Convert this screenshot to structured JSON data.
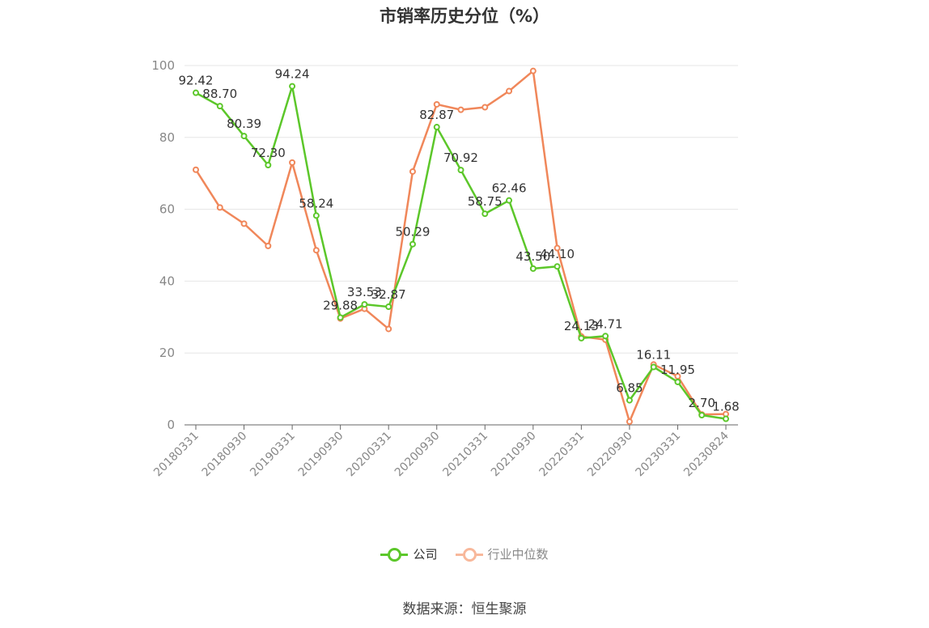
{
  "chart_data": {
    "type": "line",
    "title": "市销率历史分位（%）",
    "xlabel": "",
    "ylabel": "",
    "ylim": [
      0,
      100
    ],
    "yticks": [
      0,
      20,
      40,
      60,
      80,
      100
    ],
    "xticks": [
      "20180331",
      "20180930",
      "20190331",
      "20190930",
      "20200331",
      "20200930",
      "20210331",
      "20210930",
      "20220331",
      "20220930",
      "20230331",
      "20230824"
    ],
    "grid": true,
    "legend_position": "bottom",
    "series": [
      {
        "name": "公司",
        "color": "#5cc72a",
        "values": [
          92.42,
          88.7,
          80.39,
          72.3,
          94.24,
          58.24,
          29.88,
          33.53,
          32.87,
          50.29,
          82.87,
          70.92,
          58.75,
          62.46,
          43.5,
          44.1,
          24.13,
          24.71,
          6.85,
          16.11,
          11.95,
          2.7,
          1.68
        ],
        "labels": [
          "92.42",
          "88.70",
          "80.39",
          "72.30",
          "94.24",
          "58.24",
          "29.88",
          "33.53",
          "32.87",
          "50.29",
          "82.87",
          "70.92",
          "58.75",
          "62.46",
          "43.50",
          "44.10",
          "24.13",
          "24.71",
          "6.85",
          "16.11",
          "11.95",
          "2.70",
          "1.68"
        ]
      },
      {
        "name": "行业中位数",
        "color": "#f0875a",
        "values": [
          71.0,
          60.5,
          56.0,
          49.8,
          73.0,
          48.6,
          29.6,
          32.3,
          26.7,
          70.5,
          89.2,
          87.7,
          88.4,
          92.9,
          98.5,
          49.2,
          24.6,
          23.7,
          0.9,
          16.8,
          13.5,
          2.9,
          3.0
        ]
      }
    ]
  },
  "legend": {
    "items": [
      {
        "label": "公司",
        "color": "#5cc72a"
      },
      {
        "label": "行业中位数",
        "color": "#f8b89b"
      }
    ]
  },
  "source": "数据来源：恒生聚源"
}
